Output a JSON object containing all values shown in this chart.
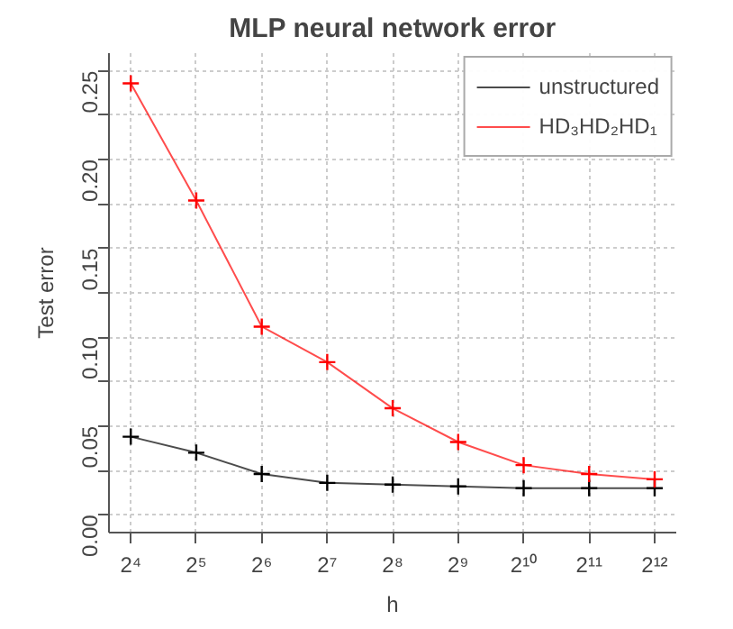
{
  "chart_data": {
    "type": "line",
    "title": "MLP neural network error",
    "xlabel": "h",
    "ylabel": "Test error",
    "x": [
      16,
      32,
      64,
      128,
      256,
      512,
      1024,
      2048,
      4096
    ],
    "series": [
      {
        "name": "unstructured",
        "color": "#000000",
        "values": [
          0.044,
          0.035,
          0.023,
          0.018,
          0.017,
          0.016,
          0.015,
          0.015,
          0.015
        ]
      },
      {
        "name": "HD₃HD₂HD₁",
        "color": "#ff0000",
        "values": [
          0.243,
          0.177,
          0.106,
          0.086,
          0.06,
          0.041,
          0.028,
          0.023,
          0.02
        ]
      }
    ],
    "log": "x",
    "xlim": [
      12.7,
      5150
    ],
    "ylim": [
      -0.01,
      0.26
    ],
    "xticks": [
      {
        "value": 16,
        "label": "2⁴"
      },
      {
        "value": 32,
        "label": "2⁵"
      },
      {
        "value": 64,
        "label": "2⁶"
      },
      {
        "value": 128,
        "label": "2⁷"
      },
      {
        "value": 256,
        "label": "2⁸"
      },
      {
        "value": 512,
        "label": "2⁹"
      },
      {
        "value": 1024,
        "label": "2¹⁰"
      },
      {
        "value": 2048,
        "label": "2¹¹"
      },
      {
        "value": 4096,
        "label": "2¹²"
      }
    ],
    "yticks": [
      {
        "value": 0,
        "label": "0.00"
      },
      {
        "value": 0.025,
        "label": null
      },
      {
        "value": 0.05,
        "label": "0.05"
      },
      {
        "value": 0.075,
        "label": null
      },
      {
        "value": 0.1,
        "label": "0.10"
      },
      {
        "value": 0.125,
        "label": null
      },
      {
        "value": 0.15,
        "label": "0.15"
      },
      {
        "value": 0.175,
        "label": null
      },
      {
        "value": 0.2,
        "label": "0.20"
      },
      {
        "value": 0.225,
        "label": null
      },
      {
        "value": 0.25,
        "label": "0.25"
      }
    ],
    "grid": true,
    "legend": "top right",
    "marker": "cross",
    "line_style": "solid"
  }
}
